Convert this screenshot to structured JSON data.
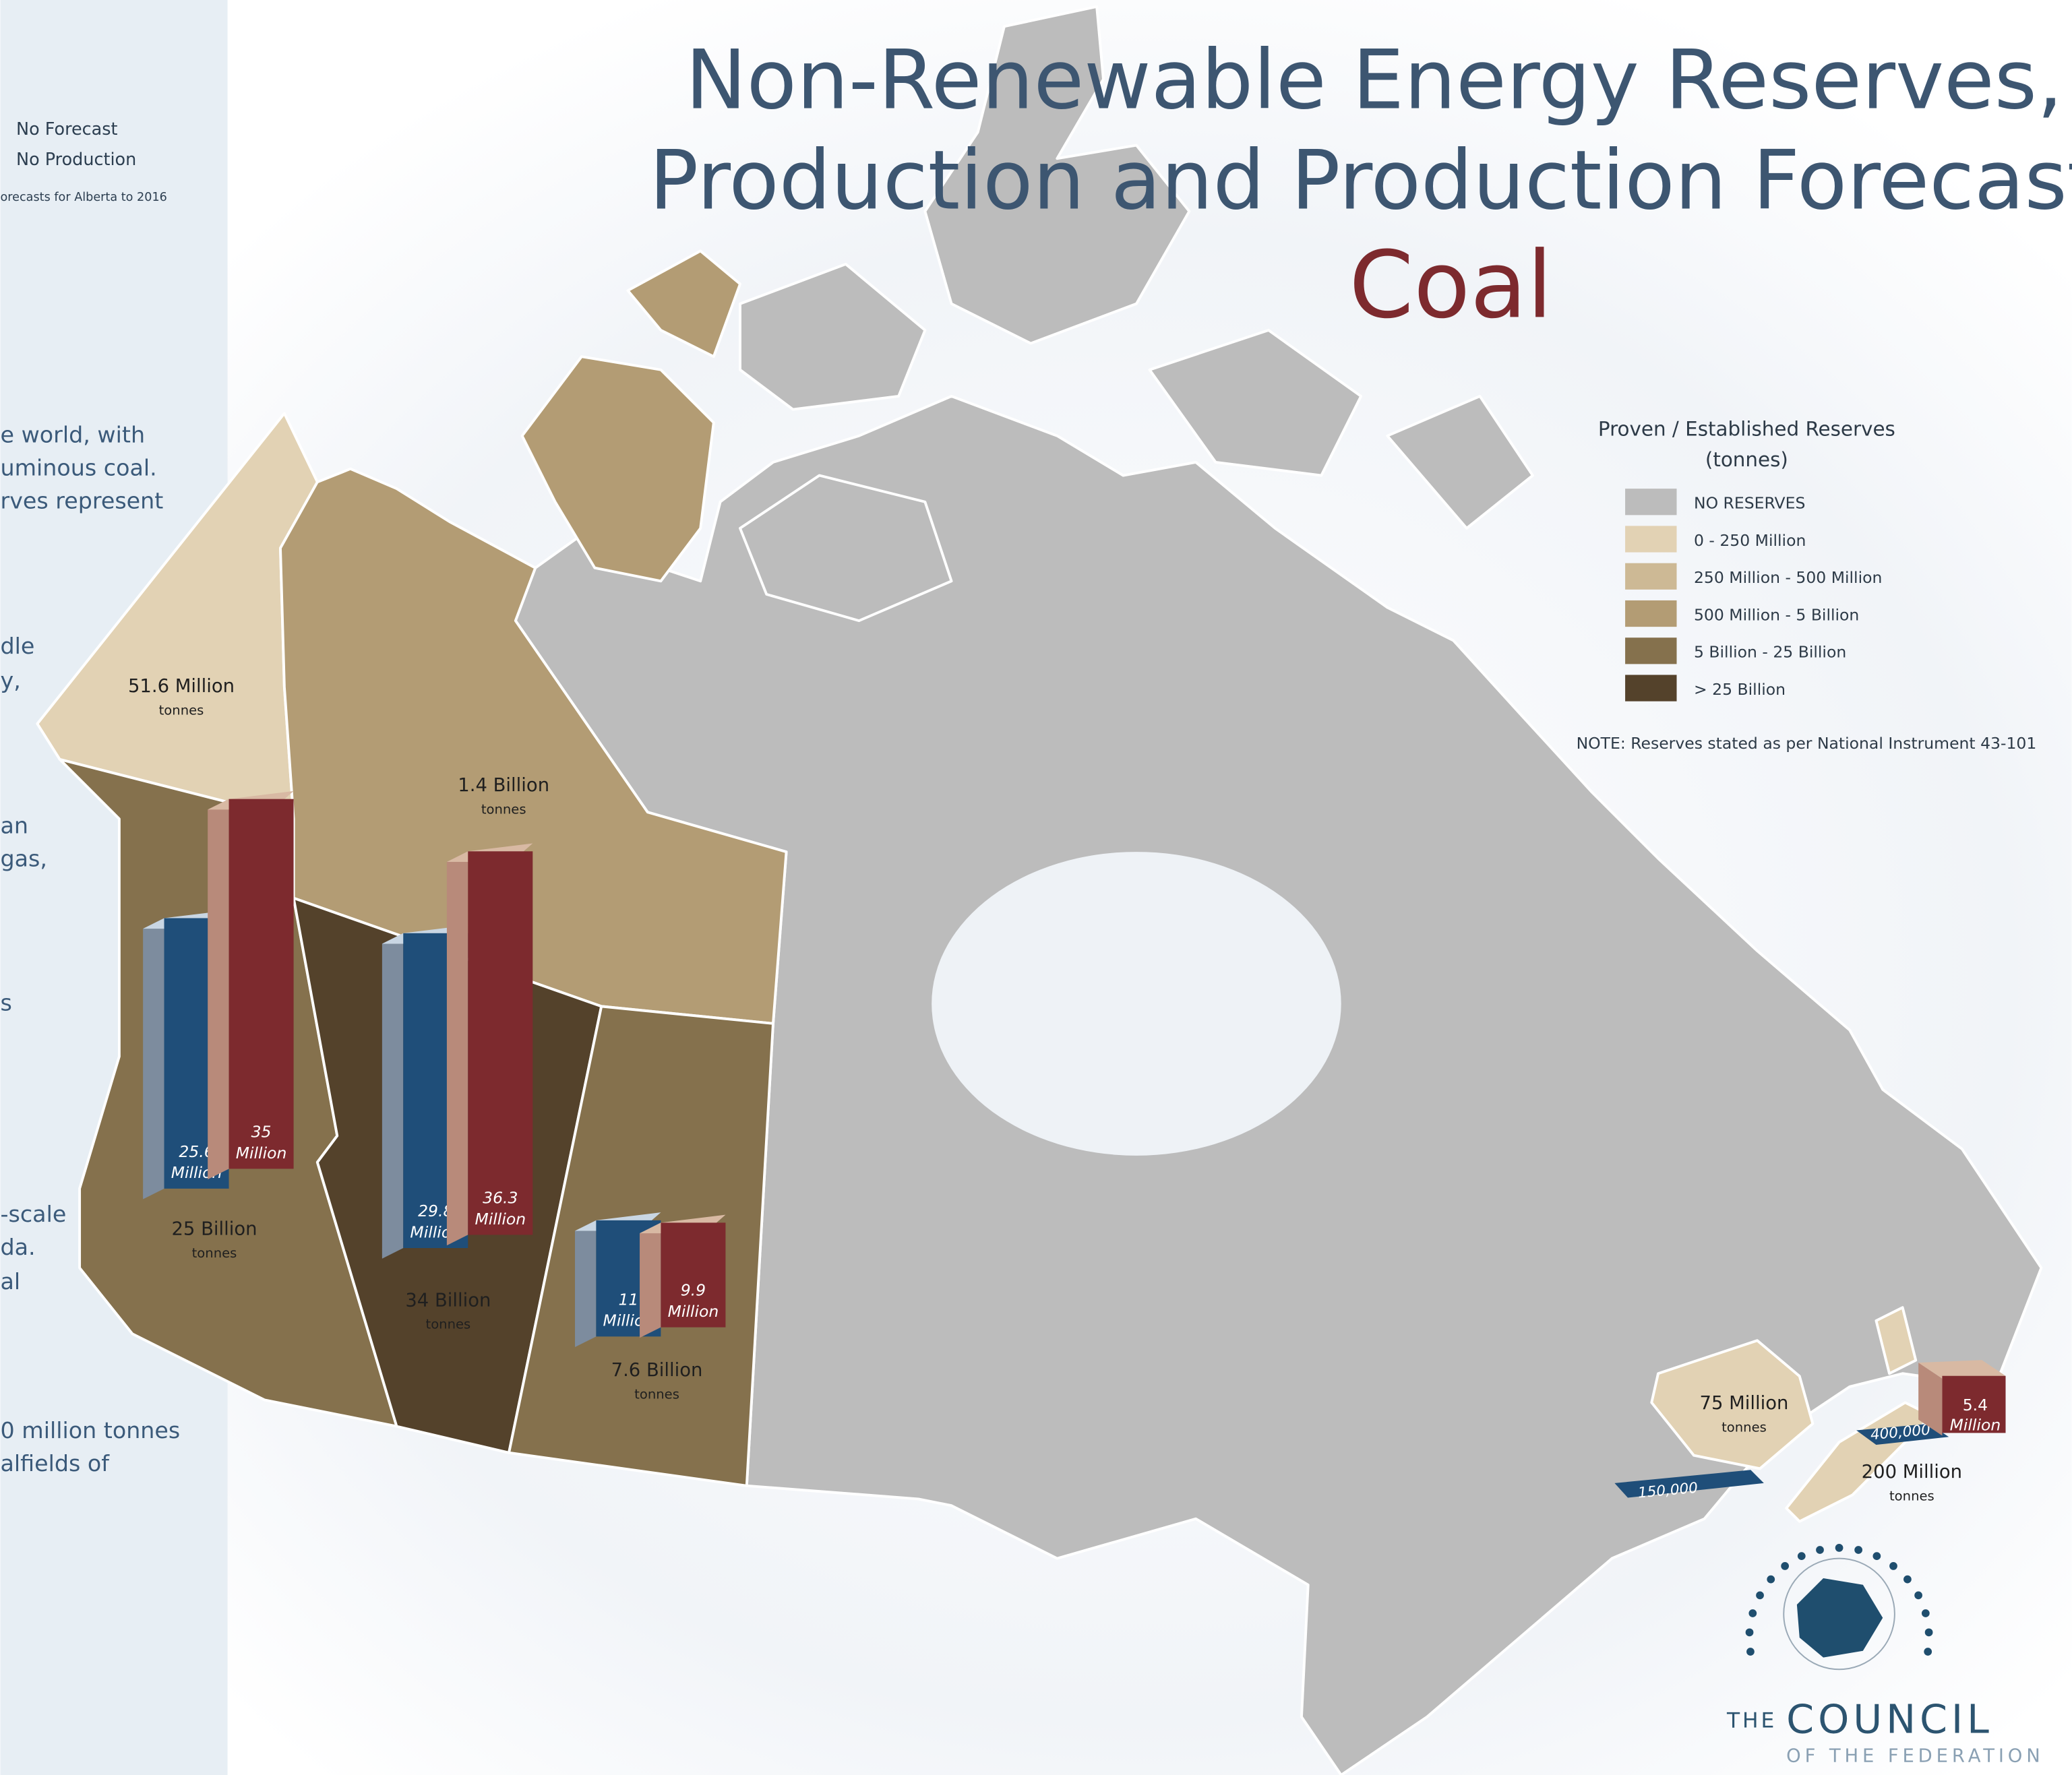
{
  "title": [
    "Non-Renewable Energy Reserves,",
    "Production and Production Forecast"
  ],
  "subtitle": "Coal",
  "side_panel": {
    "key": [
      "No Forecast",
      "No Production"
    ],
    "footnote": "orecasts for Alberta to 2016",
    "text": [
      "e world, with",
      "uminous coal.",
      "rves represent",
      "dle",
      "y,",
      "an",
      "gas,",
      "s",
      "-scale",
      "da.",
      "al",
      "0 million tonnes",
      "alfields of"
    ]
  },
  "legend": {
    "title": [
      "Proven / Established Reserves",
      "(tonnes)"
    ],
    "items": [
      {
        "label": "NO RESERVES",
        "color": "#bcbcbc"
      },
      {
        "label": "0 - 250 Million",
        "color": "#e2d2b4"
      },
      {
        "label": "250 Million - 500 Million",
        "color": "#cdb995"
      },
      {
        "label": "500 Million - 5 Billion",
        "color": "#b39c74"
      },
      {
        "label": "5 Billion - 25 Billion",
        "color": "#85714d"
      },
      {
        "label": "> 25 Billion",
        "color": "#54422b"
      }
    ],
    "note": "NOTE: Reserves stated as per National Instrument 43-101"
  },
  "reserves": [
    {
      "amount": "51.6 Million",
      "unit": "tonnes"
    },
    {
      "amount": "1.4 Billion",
      "unit": "tonnes"
    },
    {
      "amount": "25 Billion",
      "unit": "tonnes"
    },
    {
      "amount": "34 Billion",
      "unit": "tonnes"
    },
    {
      "amount": "7.6 Billion",
      "unit": "tonnes"
    },
    {
      "amount": "75 Million",
      "unit": "tonnes"
    },
    {
      "amount": "200 Million",
      "unit": "tonnes"
    }
  ],
  "production_bars": [
    {
      "production": 25.6,
      "forecast": 35,
      "production_unit": "Million",
      "forecast_unit": "Million"
    },
    {
      "production": 29.8,
      "forecast": 36.3,
      "production_unit": "Million",
      "forecast_unit": "Million"
    },
    {
      "production": 11,
      "forecast": 9.9,
      "production_unit": "Million",
      "forecast_unit": "Million"
    }
  ],
  "nova_scotia_bar": {
    "forecast": 5.4,
    "forecast_unit": "Million",
    "production_label": "400,000"
  },
  "new_brunswick_bar": {
    "production_label": "150,000"
  },
  "logo": {
    "the": "THE",
    "name": "COUNCIL",
    "sub": "OF THE FEDERATION"
  }
}
